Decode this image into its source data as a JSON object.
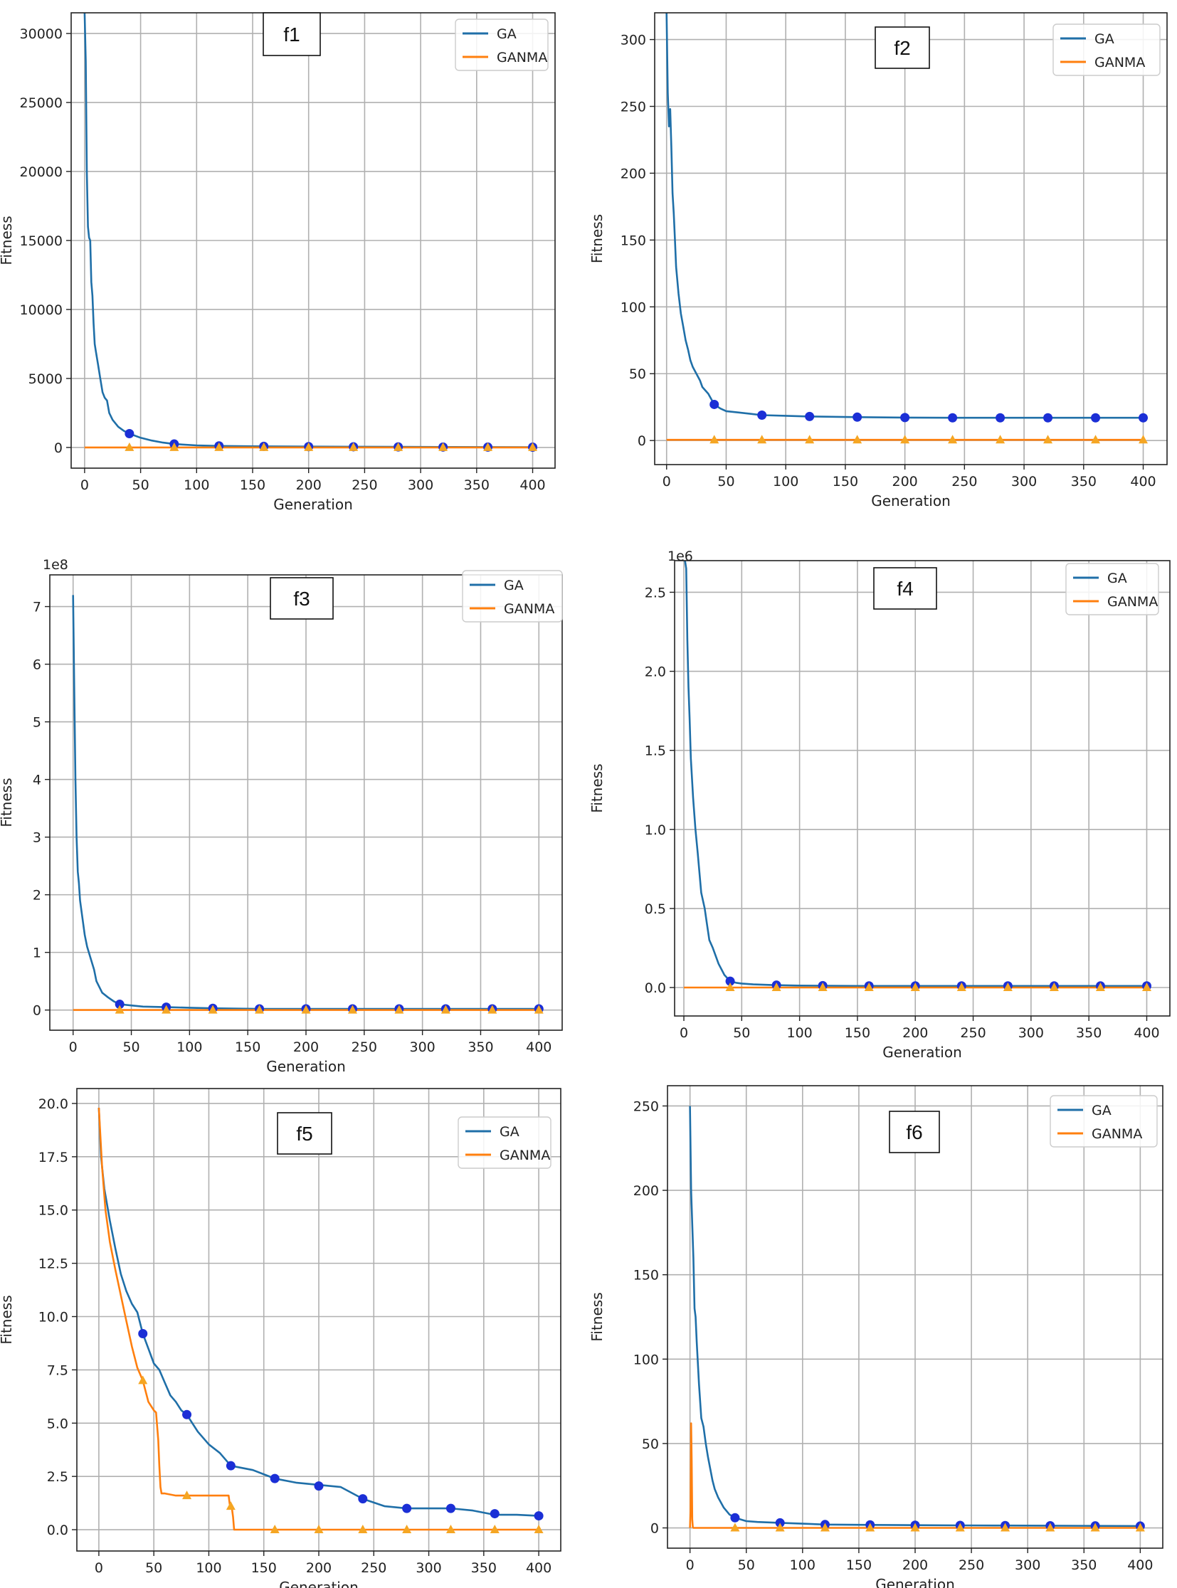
{
  "chart_data": [
    {
      "type": "line",
      "title": "f1",
      "xlabel": "Generation",
      "ylabel": "Fitness",
      "multiplier": "",
      "xlim": [
        -12,
        420
      ],
      "ylim": [
        -1500,
        31500
      ],
      "xticks": [
        0,
        50,
        100,
        150,
        200,
        250,
        300,
        350,
        400
      ],
      "yticks": [
        0,
        5000,
        10000,
        15000,
        20000,
        25000,
        30000
      ],
      "ytick_labels": [
        "0",
        "5000",
        "10000",
        "15000",
        "20000",
        "25000",
        "30000"
      ],
      "grid": true,
      "legend": "top-right",
      "colors": {
        "GA": "#1f6fa8",
        "GANMA": "#ff7f0e"
      },
      "series": [
        {
          "name": "GA",
          "x": [
            0,
            1,
            2,
            3,
            4,
            5,
            6,
            7,
            8,
            9,
            10,
            12,
            14,
            16,
            18,
            20,
            22,
            25,
            30,
            35,
            40,
            50,
            60,
            70,
            80,
            100,
            120,
            160,
            200,
            240,
            280,
            320,
            360,
            400
          ],
          "y": [
            31500,
            28000,
            20000,
            16000,
            15200,
            15000,
            12000,
            11000,
            9000,
            7500,
            7000,
            6000,
            5000,
            4000,
            3600,
            3400,
            2500,
            2000,
            1500,
            1200,
            1000,
            700,
            500,
            350,
            250,
            150,
            110,
            80,
            60,
            50,
            40,
            30,
            25,
            20
          ],
          "marker_x": [
            40,
            80,
            120,
            160,
            200,
            240,
            280,
            320,
            360,
            400
          ],
          "marker_y": [
            1000,
            250,
            110,
            80,
            60,
            50,
            40,
            30,
            25,
            20
          ]
        },
        {
          "name": "GANMA",
          "x": [
            0,
            400
          ],
          "y": [
            0,
            0
          ],
          "marker_x": [
            40,
            80,
            120,
            160,
            200,
            240,
            280,
            320,
            360,
            400
          ],
          "marker_y": [
            0,
            0,
            0,
            0,
            0,
            0,
            0,
            0,
            0,
            0
          ]
        }
      ]
    },
    {
      "type": "line",
      "title": "f2",
      "xlabel": "Generation",
      "ylabel": "Fitness",
      "multiplier": "",
      "xlim": [
        -10,
        420
      ],
      "ylim": [
        -18,
        320
      ],
      "xticks": [
        0,
        50,
        100,
        150,
        200,
        250,
        300,
        350,
        400
      ],
      "yticks": [
        0,
        50,
        100,
        150,
        200,
        250,
        300
      ],
      "ytick_labels": [
        "0",
        "50",
        "100",
        "150",
        "200",
        "250",
        "300"
      ],
      "grid": true,
      "legend": "top-right",
      "colors": {
        "GA": "#1f6fa8",
        "GANMA": "#ff7f0e"
      },
      "series": [
        {
          "name": "GA",
          "x": [
            0,
            1,
            2,
            3,
            4,
            5,
            6,
            7,
            8,
            10,
            12,
            14,
            16,
            18,
            20,
            22,
            25,
            28,
            30,
            35,
            40,
            45,
            50,
            60,
            70,
            80,
            100,
            120,
            160,
            200,
            240,
            280,
            320,
            360,
            400
          ],
          "y": [
            320,
            260,
            235,
            248,
            220,
            185,
            170,
            150,
            130,
            110,
            95,
            85,
            75,
            68,
            60,
            55,
            50,
            45,
            40,
            35,
            27,
            24,
            22,
            21,
            20,
            19,
            18.5,
            18,
            17.5,
            17.2,
            17,
            17,
            17,
            17,
            17
          ],
          "marker_x": [
            40,
            80,
            120,
            160,
            200,
            240,
            280,
            320,
            360,
            400
          ],
          "marker_y": [
            27,
            19,
            18,
            17.5,
            17.2,
            17,
            17,
            17,
            17,
            17
          ]
        },
        {
          "name": "GANMA",
          "x": [
            0,
            400
          ],
          "y": [
            0.5,
            0.5
          ],
          "marker_x": [
            40,
            80,
            120,
            160,
            200,
            240,
            280,
            320,
            360,
            400
          ],
          "marker_y": [
            0.5,
            0.5,
            0.5,
            0.5,
            0.5,
            0.5,
            0.5,
            0.5,
            0.5,
            0.5
          ]
        }
      ]
    },
    {
      "type": "line",
      "title": "f3",
      "xlabel": "Generation",
      "ylabel": "Fitness",
      "multiplier": "1e8",
      "xlim": [
        -20,
        420
      ],
      "ylim": [
        -0.35,
        7.55
      ],
      "xticks": [
        0,
        50,
        100,
        150,
        200,
        250,
        300,
        350,
        400
      ],
      "yticks": [
        0,
        1,
        2,
        3,
        4,
        5,
        6,
        7
      ],
      "ytick_labels": [
        "0",
        "1",
        "2",
        "3",
        "4",
        "5",
        "6",
        "7"
      ],
      "grid": true,
      "legend": "top-right",
      "colors": {
        "GA": "#1f6fa8",
        "GANMA": "#ff7f0e"
      },
      "series": [
        {
          "name": "GA",
          "x": [
            0,
            1,
            2,
            3,
            4,
            5,
            6,
            8,
            10,
            12,
            15,
            18,
            20,
            25,
            30,
            35,
            40,
            50,
            60,
            80,
            100,
            120,
            160,
            200,
            240,
            280,
            320,
            360,
            400
          ],
          "y": [
            7.2,
            5.5,
            4.0,
            3.0,
            2.4,
            2.2,
            1.9,
            1.6,
            1.3,
            1.1,
            0.9,
            0.7,
            0.5,
            0.3,
            0.22,
            0.15,
            0.1,
            0.08,
            0.06,
            0.05,
            0.04,
            0.03,
            0.02,
            0.02,
            0.02,
            0.02,
            0.02,
            0.02,
            0.02
          ],
          "marker_x": [
            40,
            80,
            120,
            160,
            200,
            240,
            280,
            320,
            360,
            400
          ],
          "marker_y": [
            0.1,
            0.05,
            0.03,
            0.02,
            0.02,
            0.02,
            0.02,
            0.02,
            0.02,
            0.02
          ]
        },
        {
          "name": "GANMA",
          "x": [
            0,
            400
          ],
          "y": [
            0,
            0
          ],
          "marker_x": [
            40,
            80,
            120,
            160,
            200,
            240,
            280,
            320,
            360,
            400
          ],
          "marker_y": [
            0,
            0,
            0,
            0,
            0,
            0,
            0,
            0,
            0,
            0
          ]
        }
      ]
    },
    {
      "type": "line",
      "title": "f4",
      "xlabel": "Generation",
      "ylabel": "Fitness",
      "multiplier": "1e6",
      "xlim": [
        -8,
        420
      ],
      "ylim": [
        -0.18,
        2.7
      ],
      "xticks": [
        0,
        50,
        100,
        150,
        200,
        250,
        300,
        350,
        400
      ],
      "yticks": [
        0,
        0.5,
        1.0,
        1.5,
        2.0,
        2.5
      ],
      "ytick_labels": [
        "0.0",
        "0.5",
        "1.0",
        "1.5",
        "2.0",
        "2.5"
      ],
      "grid": true,
      "legend": "top-right",
      "colors": {
        "GA": "#1f6fa8",
        "GANMA": "#ff7f0e"
      },
      "series": [
        {
          "name": "GA",
          "x": [
            0,
            1,
            2,
            3,
            4,
            5,
            6,
            8,
            10,
            12,
            15,
            18,
            20,
            22,
            25,
            30,
            35,
            40,
            45,
            50,
            60,
            80,
            100,
            150,
            200,
            250,
            300,
            350,
            400
          ],
          "y": [
            2.7,
            2.7,
            2.65,
            2.2,
            1.9,
            1.7,
            1.45,
            1.2,
            1.0,
            0.85,
            0.6,
            0.5,
            0.4,
            0.3,
            0.25,
            0.15,
            0.08,
            0.04,
            0.03,
            0.025,
            0.02,
            0.015,
            0.012,
            0.01,
            0.01,
            0.01,
            0.01,
            0.01,
            0.01
          ],
          "marker_x": [
            40,
            80,
            120,
            160,
            200,
            240,
            280,
            320,
            360,
            400
          ],
          "marker_y": [
            0.04,
            0.015,
            0.012,
            0.01,
            0.01,
            0.01,
            0.01,
            0.01,
            0.01,
            0.01
          ]
        },
        {
          "name": "GANMA",
          "x": [
            0,
            400
          ],
          "y": [
            0,
            0
          ],
          "marker_x": [
            40,
            80,
            120,
            160,
            200,
            240,
            280,
            320,
            360,
            400
          ],
          "marker_y": [
            0,
            0,
            0,
            0,
            0,
            0,
            0,
            0,
            0,
            0
          ]
        }
      ]
    },
    {
      "type": "line",
      "title": "f5",
      "xlabel": "Generation",
      "ylabel": "Fitness",
      "multiplier": "",
      "xlim": [
        -20,
        420
      ],
      "ylim": [
        -1.0,
        20.7
      ],
      "xticks": [
        0,
        50,
        100,
        150,
        200,
        250,
        300,
        350,
        400
      ],
      "yticks": [
        0,
        2.5,
        5.0,
        7.5,
        10.0,
        12.5,
        15.0,
        17.5,
        20.0
      ],
      "ytick_labels": [
        "0.0",
        "2.5",
        "5.0",
        "7.5",
        "10.0",
        "12.5",
        "15.0",
        "17.5",
        "20.0"
      ],
      "grid": true,
      "legend": "top-right",
      "colors": {
        "GA": "#1f6fa8",
        "GANMA": "#ff7f0e"
      },
      "series": [
        {
          "name": "GA",
          "x": [
            0,
            2,
            5,
            10,
            15,
            20,
            25,
            30,
            35,
            40,
            45,
            50,
            55,
            60,
            65,
            70,
            75,
            80,
            90,
            100,
            110,
            120,
            140,
            160,
            180,
            200,
            220,
            240,
            260,
            280,
            300,
            320,
            340,
            360,
            380,
            400
          ],
          "y": [
            19.8,
            17.5,
            16.0,
            14.5,
            13.2,
            12.0,
            11.2,
            10.6,
            10.2,
            9.2,
            8.5,
            7.8,
            7.5,
            6.9,
            6.3,
            6.0,
            5.6,
            5.4,
            4.6,
            4.0,
            3.6,
            3.0,
            2.8,
            2.4,
            2.2,
            2.1,
            2.0,
            1.45,
            1.1,
            1.0,
            1.0,
            1.0,
            0.9,
            0.7,
            0.7,
            0.65
          ],
          "marker_x": [
            40,
            80,
            120,
            160,
            200,
            240,
            280,
            320,
            360,
            400
          ],
          "marker_y": [
            9.2,
            5.4,
            3.0,
            2.4,
            2.05,
            1.45,
            1.0,
            1.0,
            0.75,
            0.65
          ]
        },
        {
          "name": "GANMA",
          "x": [
            0,
            3,
            6,
            10,
            15,
            20,
            25,
            30,
            35,
            40,
            45,
            50,
            52,
            54,
            55,
            56,
            57,
            60,
            70,
            80,
            100,
            118,
            119,
            120,
            121,
            122,
            123,
            130,
            160,
            200,
            240,
            280,
            320,
            360,
            400
          ],
          "y": [
            19.8,
            17.0,
            15.0,
            13.5,
            12.2,
            11.0,
            9.8,
            8.6,
            7.6,
            7.0,
            6.0,
            5.6,
            5.5,
            4.2,
            3.0,
            2.0,
            1.7,
            1.7,
            1.6,
            1.6,
            1.6,
            1.6,
            1.2,
            1.1,
            1.0,
            0.6,
            0.0,
            0.0,
            0.0,
            0.0,
            0.0,
            0.0,
            0.0,
            0.0,
            0.0
          ],
          "marker_x": [
            40,
            80,
            120,
            160,
            200,
            240,
            280,
            320,
            360,
            400
          ],
          "marker_y": [
            7.0,
            1.6,
            1.1,
            0,
            0,
            0,
            0,
            0,
            0,
            0
          ]
        }
      ]
    },
    {
      "type": "line",
      "title": "f6",
      "xlabel": "Generation",
      "ylabel": "Fitness",
      "multiplier": "",
      "xlim": [
        -20,
        420
      ],
      "ylim": [
        -12,
        262
      ],
      "xticks": [
        0,
        50,
        100,
        150,
        200,
        250,
        300,
        350,
        400
      ],
      "yticks": [
        0,
        50,
        100,
        150,
        200,
        250
      ],
      "ytick_labels": [
        "0",
        "50",
        "100",
        "150",
        "200",
        "250"
      ],
      "grid": true,
      "legend": "top-right",
      "colors": {
        "GA": "#1f6fa8",
        "GANMA": "#ff7f0e"
      },
      "series": [
        {
          "name": "GA",
          "x": [
            0,
            1,
            2,
            3,
            4,
            5,
            6,
            8,
            10,
            12,
            14,
            16,
            18,
            20,
            22,
            25,
            30,
            35,
            40,
            50,
            60,
            80,
            100,
            120,
            160,
            200,
            240,
            280,
            320,
            360,
            400
          ],
          "y": [
            250,
            200,
            180,
            160,
            130,
            125,
            110,
            85,
            65,
            60,
            50,
            42,
            35,
            28,
            23,
            18,
            12,
            8,
            6,
            4,
            3.5,
            3,
            2.5,
            2,
            1.8,
            1.6,
            1.5,
            1.4,
            1.3,
            1.2,
            1.1
          ],
          "marker_x": [
            40,
            80,
            120,
            160,
            200,
            240,
            280,
            320,
            360,
            400
          ],
          "marker_y": [
            6,
            3,
            2,
            1.8,
            1.6,
            1.5,
            1.4,
            1.3,
            1.2,
            1.1
          ]
        },
        {
          "name": "GANMA",
          "x": [
            0,
            0.5,
            1,
            1.5,
            2,
            2.5,
            3,
            400
          ],
          "y": [
            0,
            10,
            62,
            40,
            5,
            0.5,
            0,
            0
          ],
          "marker_x": [
            40,
            80,
            120,
            160,
            200,
            240,
            280,
            320,
            360,
            400
          ],
          "marker_y": [
            0,
            0,
            0,
            0,
            0,
            0,
            0,
            0,
            0,
            0
          ]
        }
      ]
    }
  ]
}
